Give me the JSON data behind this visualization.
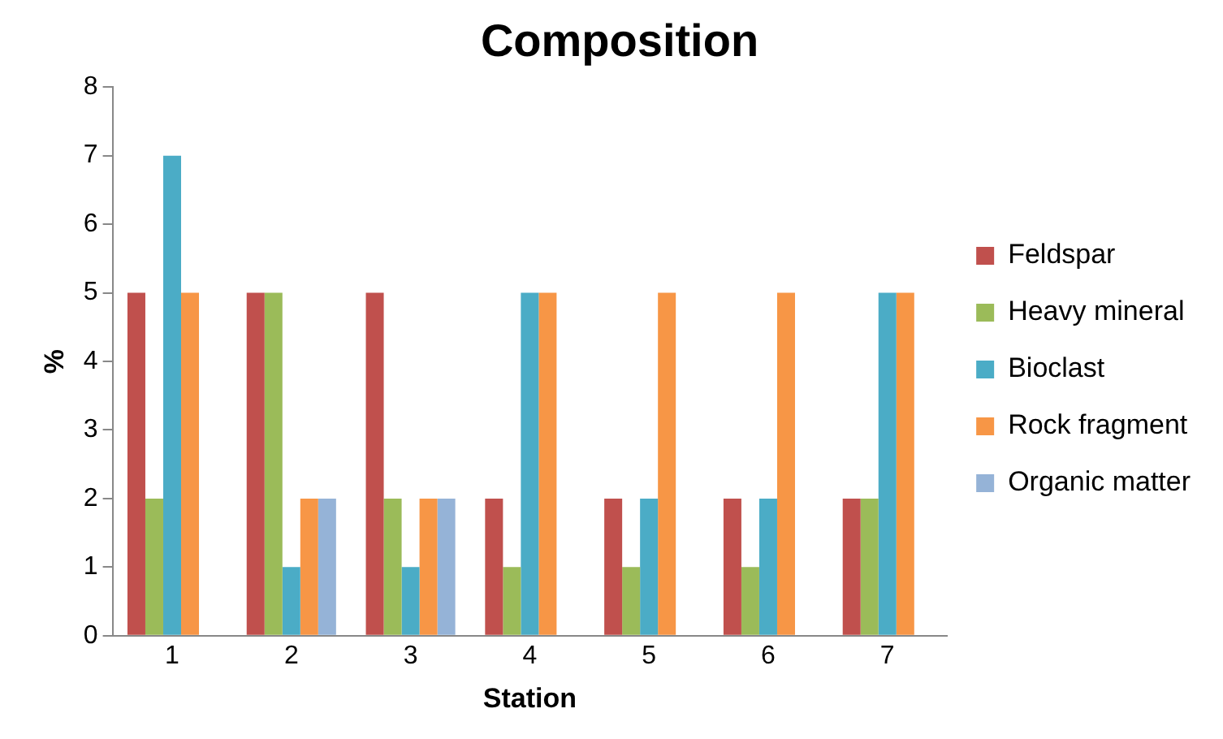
{
  "chart_data": {
    "type": "bar",
    "title": "Composition",
    "xlabel": "Station",
    "ylabel": "%",
    "categories": [
      "1",
      "2",
      "3",
      "4",
      "5",
      "6",
      "7"
    ],
    "series": [
      {
        "name": "Feldspar",
        "color": "#c0504d",
        "values": [
          5,
          5,
          5,
          2,
          2,
          2,
          2
        ]
      },
      {
        "name": "Heavy mineral",
        "color": "#9bbb59",
        "values": [
          2,
          5,
          2,
          1,
          1,
          1,
          2
        ]
      },
      {
        "name": "Bioclast",
        "color": "#4bacc6",
        "values": [
          7,
          1,
          1,
          5,
          2,
          2,
          5
        ]
      },
      {
        "name": "Rock fragment",
        "color": "#f79646",
        "values": [
          5,
          2,
          2,
          5,
          5,
          5,
          5
        ]
      },
      {
        "name": "Organic matter",
        "color": "#95b3d7",
        "values": [
          0,
          2,
          2,
          0,
          0,
          0,
          0
        ]
      }
    ],
    "ylim": [
      0,
      8
    ],
    "yticks": [
      0,
      1,
      2,
      3,
      4,
      5,
      6,
      7,
      8
    ],
    "grid": false,
    "legend": "right"
  }
}
